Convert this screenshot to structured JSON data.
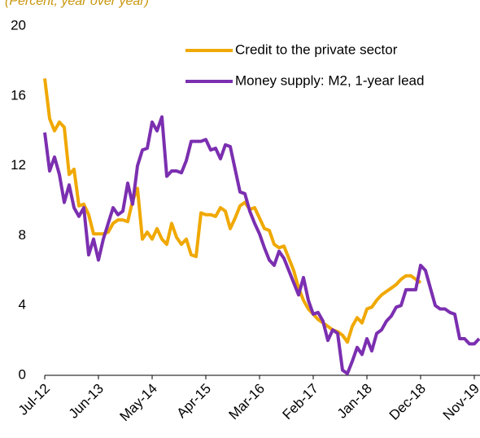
{
  "chart_data": {
    "type": "line",
    "title": "(Percent, year over year)",
    "categories": [
      "Jul-12",
      null,
      null,
      null,
      null,
      null,
      null,
      null,
      null,
      null,
      null,
      "Jun-13",
      null,
      null,
      null,
      null,
      null,
      null,
      null,
      null,
      null,
      null,
      "May-14",
      null,
      null,
      null,
      null,
      null,
      null,
      null,
      null,
      null,
      null,
      "Apr-15",
      null,
      null,
      null,
      null,
      null,
      null,
      null,
      null,
      null,
      null,
      "Mar-16",
      null,
      null,
      null,
      null,
      null,
      null,
      null,
      null,
      null,
      null,
      "Feb-17",
      null,
      null,
      null,
      null,
      null,
      null,
      null,
      null,
      null,
      null,
      "Jan-18",
      null,
      null,
      null,
      null,
      null,
      null,
      null,
      null,
      null,
      null,
      "Dec-18",
      null,
      null,
      null,
      null,
      null,
      null,
      null,
      null,
      null,
      null,
      "Nov-19",
      null
    ],
    "series": [
      {
        "name": "Credit to the private sector",
        "color": "#f0a800",
        "values": [
          17.0,
          14.7,
          14.0,
          14.5,
          14.2,
          11.5,
          11.8,
          9.7,
          9.8,
          9.2,
          8.1,
          8.1,
          8.1,
          8.2,
          8.7,
          8.9,
          8.9,
          8.8,
          10.0,
          10.7,
          7.8,
          8.2,
          7.8,
          8.4,
          7.8,
          7.5,
          8.7,
          7.9,
          7.5,
          7.8,
          6.9,
          6.8,
          9.3,
          9.2,
          9.2,
          9.1,
          9.6,
          9.4,
          8.4,
          9.0,
          9.7,
          9.9,
          9.5,
          9.6,
          9.0,
          8.4,
          8.3,
          7.5,
          7.3,
          7.4,
          6.7,
          6.0,
          5.0,
          4.3,
          3.8,
          3.5,
          3.2,
          3.0,
          2.8,
          2.6,
          2.5,
          2.3,
          1.9,
          2.8,
          3.3,
          3.0,
          3.8,
          3.9,
          4.3,
          4.6,
          4.8,
          5.0,
          5.2,
          5.5,
          5.7,
          5.7,
          5.5,
          5.3,
          null,
          null,
          null,
          null,
          null,
          null,
          null,
          null,
          null,
          null,
          null,
          null
        ]
      },
      {
        "name": "Money supply: M2, 1-year lead",
        "color": "#7b2fb0",
        "values": [
          13.9,
          11.7,
          12.5,
          11.5,
          9.9,
          10.9,
          9.6,
          9.1,
          9.6,
          6.9,
          7.8,
          6.6,
          7.8,
          8.7,
          9.6,
          9.2,
          9.4,
          11.0,
          9.8,
          12.0,
          12.9,
          13.0,
          14.5,
          14.0,
          14.8,
          11.4,
          11.7,
          11.7,
          11.6,
          12.3,
          13.4,
          13.4,
          13.4,
          13.5,
          12.9,
          13.0,
          12.4,
          13.2,
          13.1,
          11.8,
          10.5,
          10.4,
          9.4,
          8.7,
          8.1,
          7.3,
          6.6,
          6.3,
          7.1,
          6.7,
          6.0,
          5.3,
          4.6,
          5.6,
          4.3,
          3.5,
          3.6,
          3.1,
          2.0,
          2.6,
          2.4,
          0.3,
          0.1,
          0.8,
          1.6,
          1.2,
          2.1,
          1.4,
          2.4,
          2.6,
          3.1,
          3.4,
          3.9,
          4.0,
          4.9,
          4.9,
          4.9,
          6.3,
          6.0,
          5.0,
          4.0,
          3.8,
          3.8,
          3.6,
          3.5,
          2.1,
          2.1,
          1.8,
          1.8,
          2.1
        ]
      }
    ],
    "ylim": [
      0,
      20
    ],
    "yticks": [
      0,
      4,
      8,
      12,
      16,
      20
    ],
    "legend": "top-right"
  }
}
